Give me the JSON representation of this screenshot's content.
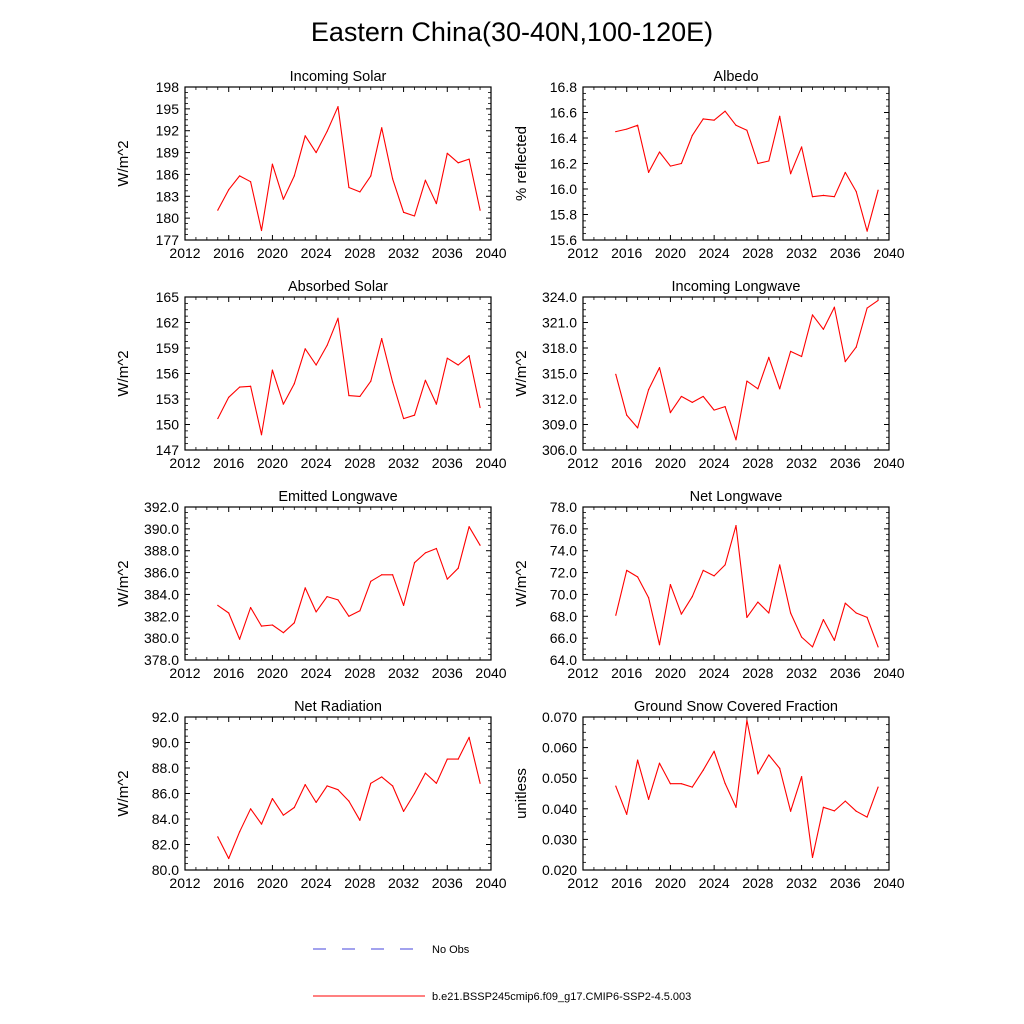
{
  "figure": {
    "title": "Eastern China(30-40N,100-120E)",
    "legend": [
      {
        "label": "No Obs",
        "color": "#4444dd",
        "style": "dashed"
      },
      {
        "label": "b.e21.BSSP245cmip6.f09_g17.CMIP6-SSP2-4.5.003",
        "color": "#ff0000",
        "style": "solid"
      }
    ],
    "series_color": "#ff0000"
  },
  "chart_data": [
    {
      "type": "line",
      "title": "Incoming Solar",
      "ylabel": "W/m^2",
      "xlim": [
        2012,
        2040
      ],
      "xticks": [
        2012,
        2016,
        2020,
        2024,
        2028,
        2032,
        2036,
        2040
      ],
      "ylim": [
        177,
        198
      ],
      "yticks": [
        177,
        180,
        183,
        186,
        189,
        192,
        195,
        198
      ],
      "ytick_decimals": 0,
      "x": [
        2015,
        2016,
        2017,
        2018,
        2019,
        2020,
        2021,
        2022,
        2023,
        2024,
        2025,
        2026,
        2027,
        2028,
        2029,
        2030,
        2031,
        2032,
        2033,
        2034,
        2035,
        2036,
        2037,
        2038,
        2039
      ],
      "y": [
        181.1,
        183.9,
        185.8,
        185.0,
        178.3,
        187.4,
        182.6,
        185.8,
        191.3,
        189.0,
        191.9,
        195.3,
        184.2,
        183.6,
        185.8,
        192.4,
        185.4,
        180.8,
        180.3,
        185.2,
        182.0,
        188.9,
        187.6,
        188.1,
        181.1
      ]
    },
    {
      "type": "line",
      "title": "Albedo",
      "ylabel": "% reflected",
      "xlim": [
        2012,
        2040
      ],
      "xticks": [
        2012,
        2016,
        2020,
        2024,
        2028,
        2032,
        2036,
        2040
      ],
      "ylim": [
        15.6,
        16.8
      ],
      "yticks": [
        15.6,
        15.8,
        16.0,
        16.2,
        16.4,
        16.6,
        16.8
      ],
      "ytick_decimals": 1,
      "x": [
        2015,
        2016,
        2017,
        2018,
        2019,
        2020,
        2021,
        2022,
        2023,
        2024,
        2025,
        2026,
        2027,
        2028,
        2029,
        2030,
        2031,
        2032,
        2033,
        2034,
        2035,
        2036,
        2037,
        2038,
        2039
      ],
      "y": [
        16.45,
        16.47,
        16.5,
        16.13,
        16.29,
        16.18,
        16.2,
        16.42,
        16.55,
        16.54,
        16.61,
        16.5,
        16.46,
        16.2,
        16.22,
        16.57,
        16.12,
        16.33,
        15.94,
        15.95,
        15.94,
        16.13,
        15.98,
        15.67,
        15.99
      ]
    },
    {
      "type": "line",
      "title": "Absorbed Solar",
      "ylabel": "W/m^2",
      "xlim": [
        2012,
        2040
      ],
      "xticks": [
        2012,
        2016,
        2020,
        2024,
        2028,
        2032,
        2036,
        2040
      ],
      "ylim": [
        147,
        165
      ],
      "yticks": [
        147,
        150,
        153,
        156,
        159,
        162,
        165
      ],
      "ytick_decimals": 0,
      "x": [
        2015,
        2016,
        2017,
        2018,
        2019,
        2020,
        2021,
        2022,
        2023,
        2024,
        2025,
        2026,
        2027,
        2028,
        2029,
        2030,
        2031,
        2032,
        2033,
        2034,
        2035,
        2036,
        2037,
        2038,
        2039
      ],
      "y": [
        150.7,
        153.2,
        154.4,
        154.5,
        148.8,
        156.4,
        152.4,
        154.8,
        158.9,
        157.0,
        159.3,
        162.5,
        153.4,
        153.3,
        155.1,
        160.1,
        155.0,
        150.7,
        151.1,
        155.2,
        152.4,
        157.8,
        157.0,
        158.1,
        152.0
      ]
    },
    {
      "type": "line",
      "title": "Incoming Longwave",
      "ylabel": "W/m^2",
      "xlim": [
        2012,
        2040
      ],
      "xticks": [
        2012,
        2016,
        2020,
        2024,
        2028,
        2032,
        2036,
        2040
      ],
      "ylim": [
        306.0,
        324.0
      ],
      "yticks": [
        306.0,
        309.0,
        312.0,
        315.0,
        318.0,
        321.0,
        324.0
      ],
      "ytick_decimals": 1,
      "x": [
        2015,
        2016,
        2017,
        2018,
        2019,
        2020,
        2021,
        2022,
        2023,
        2024,
        2025,
        2026,
        2027,
        2028,
        2029,
        2030,
        2031,
        2032,
        2033,
        2034,
        2035,
        2036,
        2037,
        2038,
        2039
      ],
      "y": [
        314.9,
        310.1,
        308.6,
        313.1,
        315.7,
        310.4,
        312.3,
        311.6,
        312.3,
        310.7,
        311.1,
        307.2,
        314.1,
        313.2,
        316.9,
        313.2,
        317.6,
        317.0,
        321.9,
        320.2,
        322.8,
        316.4,
        318.1,
        322.7,
        323.6
      ]
    },
    {
      "type": "line",
      "title": "Emitted Longwave",
      "ylabel": "W/m^2",
      "xlim": [
        2012,
        2040
      ],
      "xticks": [
        2012,
        2016,
        2020,
        2024,
        2028,
        2032,
        2036,
        2040
      ],
      "ylim": [
        378.0,
        392.0
      ],
      "yticks": [
        378.0,
        380.0,
        382.0,
        384.0,
        386.0,
        388.0,
        390.0,
        392.0
      ],
      "ytick_decimals": 1,
      "x": [
        2015,
        2016,
        2017,
        2018,
        2019,
        2020,
        2021,
        2022,
        2023,
        2024,
        2025,
        2026,
        2027,
        2028,
        2029,
        2030,
        2031,
        2032,
        2033,
        2034,
        2035,
        2036,
        2037,
        2038,
        2039
      ],
      "y": [
        383.0,
        382.3,
        379.9,
        382.8,
        381.1,
        381.2,
        380.5,
        381.4,
        384.6,
        382.4,
        383.8,
        383.5,
        382.0,
        382.5,
        385.2,
        385.8,
        385.8,
        383.0,
        386.9,
        387.8,
        388.2,
        385.4,
        386.4,
        390.2,
        388.5
      ]
    },
    {
      "type": "line",
      "title": "Net Longwave",
      "ylabel": "W/m^2",
      "xlim": [
        2012,
        2040
      ],
      "xticks": [
        2012,
        2016,
        2020,
        2024,
        2028,
        2032,
        2036,
        2040
      ],
      "ylim": [
        64.0,
        78.0
      ],
      "yticks": [
        64.0,
        66.0,
        68.0,
        70.0,
        72.0,
        74.0,
        76.0,
        78.0
      ],
      "ytick_decimals": 1,
      "x": [
        2015,
        2016,
        2017,
        2018,
        2019,
        2020,
        2021,
        2022,
        2023,
        2024,
        2025,
        2026,
        2027,
        2028,
        2029,
        2030,
        2031,
        2032,
        2033,
        2034,
        2035,
        2036,
        2037,
        2038,
        2039
      ],
      "y": [
        68.1,
        72.2,
        71.6,
        69.7,
        65.4,
        70.9,
        68.2,
        69.8,
        72.2,
        71.7,
        72.7,
        76.3,
        67.9,
        69.3,
        68.3,
        72.7,
        68.3,
        66.1,
        65.2,
        67.7,
        65.8,
        69.2,
        68.3,
        67.9,
        65.2
      ]
    },
    {
      "type": "line",
      "title": "Net Radiation",
      "ylabel": "W/m^2",
      "xlim": [
        2012,
        2040
      ],
      "xticks": [
        2012,
        2016,
        2020,
        2024,
        2028,
        2032,
        2036,
        2040
      ],
      "ylim": [
        80.0,
        92.0
      ],
      "yticks": [
        80.0,
        82.0,
        84.0,
        86.0,
        88.0,
        90.0,
        92.0
      ],
      "ytick_decimals": 1,
      "x": [
        2015,
        2016,
        2017,
        2018,
        2019,
        2020,
        2021,
        2022,
        2023,
        2024,
        2025,
        2026,
        2027,
        2028,
        2029,
        2030,
        2031,
        2032,
        2033,
        2034,
        2035,
        2036,
        2037,
        2038,
        2039
      ],
      "y": [
        82.6,
        80.9,
        83.0,
        84.8,
        83.6,
        85.6,
        84.3,
        84.9,
        86.7,
        85.3,
        86.6,
        86.3,
        85.4,
        83.9,
        86.8,
        87.3,
        86.6,
        84.6,
        86.0,
        87.6,
        86.8,
        88.7,
        88.7,
        90.4,
        86.8
      ]
    },
    {
      "type": "line",
      "title": "Ground Snow Covered Fraction",
      "ylabel": "unitless",
      "xlim": [
        2012,
        2040
      ],
      "xticks": [
        2012,
        2016,
        2020,
        2024,
        2028,
        2032,
        2036,
        2040
      ],
      "ylim": [
        0.02,
        0.07
      ],
      "yticks": [
        0.02,
        0.03,
        0.04,
        0.05,
        0.06,
        0.07
      ],
      "ytick_decimals": 3,
      "x": [
        2015,
        2016,
        2017,
        2018,
        2019,
        2020,
        2021,
        2022,
        2023,
        2024,
        2025,
        2026,
        2027,
        2028,
        2029,
        2030,
        2031,
        2032,
        2033,
        2034,
        2035,
        2036,
        2037,
        2038,
        2039
      ],
      "y": [
        0.0474,
        0.0382,
        0.0559,
        0.0431,
        0.0549,
        0.0482,
        0.0482,
        0.0471,
        0.0526,
        0.0588,
        0.0483,
        0.0405,
        0.0689,
        0.0514,
        0.0576,
        0.0532,
        0.0392,
        0.0505,
        0.0241,
        0.0405,
        0.0393,
        0.0425,
        0.0392,
        0.0373,
        0.0471
      ]
    }
  ]
}
